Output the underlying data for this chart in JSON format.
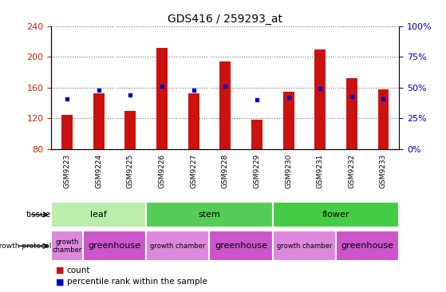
{
  "title": "GDS416 / 259293_at",
  "samples": [
    "GSM9223",
    "GSM9224",
    "GSM9225",
    "GSM9226",
    "GSM9227",
    "GSM9228",
    "GSM9229",
    "GSM9230",
    "GSM9231",
    "GSM9232",
    "GSM9233"
  ],
  "counts": [
    124,
    152,
    130,
    212,
    152,
    194,
    118,
    155,
    210,
    172,
    158
  ],
  "percentile_ranks": [
    41,
    48,
    44,
    51,
    48,
    51,
    40,
    42,
    49,
    43,
    41
  ],
  "ylim": [
    80,
    240
  ],
  "yticks": [
    80,
    120,
    160,
    200,
    240
  ],
  "right_ylim": [
    0,
    100
  ],
  "right_yticks": [
    0,
    25,
    50,
    75,
    100
  ],
  "right_yticklabels": [
    "0%",
    "25%",
    "50%",
    "75%",
    "100%"
  ],
  "bar_color": "#cc1111",
  "dot_color": "#0000cc",
  "bar_bottom": 80,
  "tissue_groups": [
    {
      "label": "leaf",
      "start": 0,
      "end": 3,
      "color": "#bbeeaa"
    },
    {
      "label": "stem",
      "start": 3,
      "end": 7,
      "color": "#55cc55"
    },
    {
      "label": "flower",
      "start": 7,
      "end": 11,
      "color": "#44cc44"
    }
  ],
  "protocol_groups": [
    {
      "label": "growth\nchamber",
      "start": 0,
      "end": 1,
      "color": "#dd88dd",
      "small": true
    },
    {
      "label": "greenhouse",
      "start": 1,
      "end": 3,
      "color": "#cc55cc",
      "small": false
    },
    {
      "label": "growth chamber",
      "start": 3,
      "end": 5,
      "color": "#dd88dd",
      "small": true
    },
    {
      "label": "greenhouse",
      "start": 5,
      "end": 7,
      "color": "#cc55cc",
      "small": false
    },
    {
      "label": "growth chamber",
      "start": 7,
      "end": 9,
      "color": "#dd88dd",
      "small": true
    },
    {
      "label": "greenhouse",
      "start": 9,
      "end": 11,
      "color": "#cc55cc",
      "small": false
    }
  ],
  "left_tick_color": "#cc2200",
  "right_tick_color": "#0000cc",
  "grid_color": "#666666",
  "plot_bg": "#ffffff",
  "tick_area_bg": "#cccccc",
  "bar_width": 0.35
}
